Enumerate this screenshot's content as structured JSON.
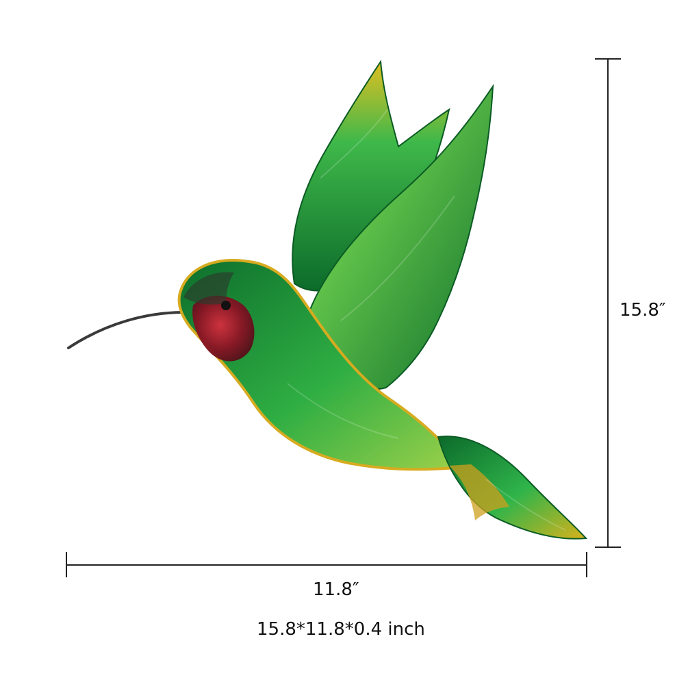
{
  "dimensions": {
    "height": "15.8″",
    "width": "11.8″",
    "full": "15.8*11.8*0.4 inch"
  },
  "product": {
    "icon": "hummingbird-icon"
  },
  "colors": {
    "line": "#222222",
    "green_dark": "#0f6a2b",
    "green": "#1ea13f",
    "green_light": "#7fcf43",
    "gold": "#d8b21c",
    "red": "#b3142c",
    "gray_beak": "#3c3c3c"
  }
}
